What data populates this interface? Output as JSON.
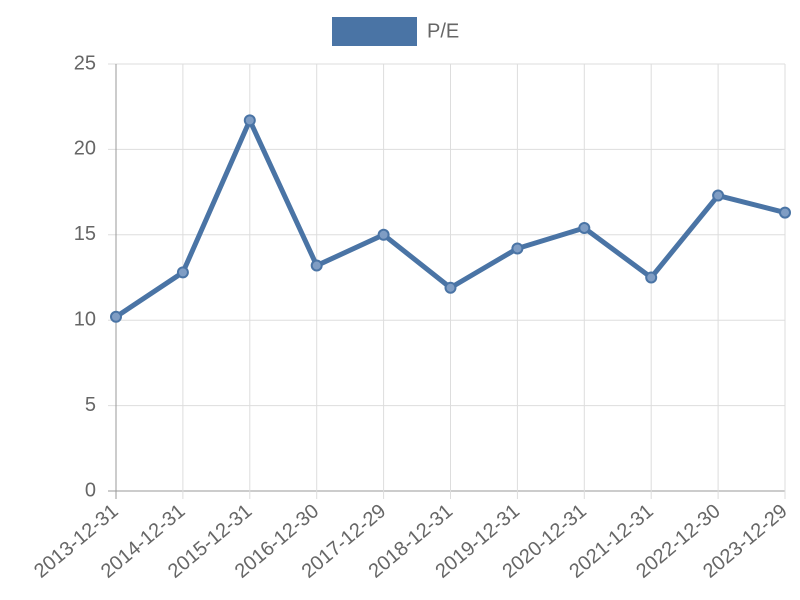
{
  "chart_data": {
    "type": "line",
    "categories": [
      "2013-12-31",
      "2014-12-31",
      "2015-12-31",
      "2016-12-30",
      "2017-12-29",
      "2018-12-31",
      "2019-12-31",
      "2020-12-31",
      "2021-12-31",
      "2022-12-30",
      "2023-12-29"
    ],
    "series": [
      {
        "name": "P/E",
        "color": "#4a74a5",
        "values": [
          10.2,
          12.8,
          21.7,
          13.2,
          15.0,
          11.9,
          14.2,
          15.4,
          12.5,
          17.3,
          16.3
        ]
      }
    ],
    "ylim": [
      0,
      25
    ],
    "yticks": [
      0,
      5,
      10,
      15,
      20,
      25
    ],
    "grid": true,
    "legend": "top"
  }
}
